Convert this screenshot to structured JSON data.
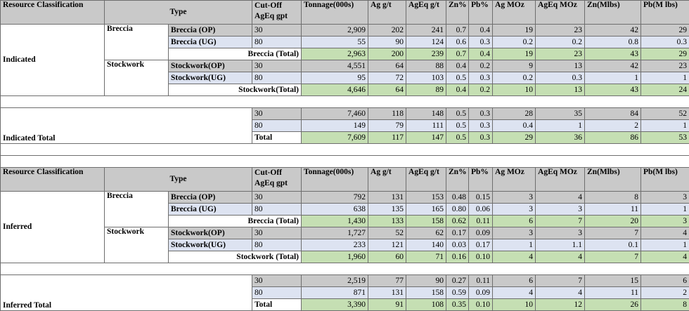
{
  "header": {
    "resource_classification": "Resource Classification",
    "type": "Type",
    "cut_off_line1": "Cut-Off",
    "cut_off_line2": "AgEq gpt",
    "tonnage": "Tonnage(000s)",
    "ag_gt": "Ag  g/t",
    "ageq_gt": "AgEq g/t",
    "zn_pct": "Zn%",
    "pb_pct": "Pb%",
    "ag_moz": "Ag MOz",
    "ageq_moz": "AgEq MOz",
    "zn_mlbs": "Zn(Mlbs)",
    "pb_mlbs": "Pb(M lbs)"
  },
  "indicated": {
    "classification": "Indicated",
    "breccia": {
      "name": "Breccia",
      "rows": [
        {
          "type": "Breccia (OP)",
          "cutoff": "30",
          "tonnage": "2,909",
          "ag": "202",
          "ageq": "241",
          "zn": "0.7",
          "pb": "0.4",
          "ag_moz": "19",
          "ageq_moz": "23",
          "zn_mlbs": "42",
          "pb_mlbs": "29"
        },
        {
          "type": "Breccia (UG)",
          "cutoff": "80",
          "tonnage": "55",
          "ag": "90",
          "ageq": "124",
          "zn": "0.6",
          "pb": "0.3",
          "ag_moz": "0.2",
          "ageq_moz": "0.2",
          "zn_mlbs": "0.8",
          "pb_mlbs": "0.3"
        }
      ],
      "total": {
        "type": "Breccia (Total)",
        "tonnage": "2,963",
        "ag": "200",
        "ageq": "239",
        "zn": "0.7",
        "pb": "0.4",
        "ag_moz": "19",
        "ageq_moz": "23",
        "zn_mlbs": "43",
        "pb_mlbs": "29"
      }
    },
    "stockwork": {
      "name": "Stockwork",
      "rows": [
        {
          "type": "Stockwork(OP)",
          "cutoff": "30",
          "tonnage": "4,551",
          "ag": "64",
          "ageq": "88",
          "zn": "0.4",
          "pb": "0.2",
          "ag_moz": "9",
          "ageq_moz": "13",
          "zn_mlbs": "42",
          "pb_mlbs": "23"
        },
        {
          "type": "Stockwork(UG)",
          "cutoff": "80",
          "tonnage": "95",
          "ag": "72",
          "ageq": "103",
          "zn": "0.5",
          "pb": "0.3",
          "ag_moz": "0.2",
          "ageq_moz": "0.3",
          "zn_mlbs": "1",
          "pb_mlbs": "1"
        }
      ],
      "total": {
        "type": "Stockwork(Total)",
        "tonnage": "4,646",
        "ag": "64",
        "ageq": "89",
        "zn": "0.4",
        "pb": "0.2",
        "ag_moz": "10",
        "ageq_moz": "13",
        "zn_mlbs": "43",
        "pb_mlbs": "24"
      }
    },
    "grand_total": {
      "name": "Indicated Total",
      "rows": [
        {
          "cutoff": "30",
          "tonnage": "7,460",
          "ag": "118",
          "ageq": "148",
          "zn": "0.5",
          "pb": "0.3",
          "ag_moz": "28",
          "ageq_moz": "35",
          "zn_mlbs": "84",
          "pb_mlbs": "52"
        },
        {
          "cutoff": "80",
          "tonnage": "149",
          "ag": "79",
          "ageq": "111",
          "zn": "0.5",
          "pb": "0.3",
          "ag_moz": "0.4",
          "ageq_moz": "1",
          "zn_mlbs": "2",
          "pb_mlbs": "1"
        }
      ],
      "total": {
        "cutoff": "Total",
        "tonnage": "7,609",
        "ag": "117",
        "ageq": "147",
        "zn": "0.5",
        "pb": "0.3",
        "ag_moz": "29",
        "ageq_moz": "36",
        "zn_mlbs": "86",
        "pb_mlbs": "53"
      }
    }
  },
  "inferred": {
    "classification": "Inferred",
    "breccia": {
      "name": "Breccia",
      "rows": [
        {
          "type": "Breccia (OP)",
          "cutoff": "30",
          "tonnage": "792",
          "ag": "131",
          "ageq": "153",
          "zn": "0.48",
          "pb": "0.15",
          "ag_moz": "3",
          "ageq_moz": "4",
          "zn_mlbs": "8",
          "pb_mlbs": "3"
        },
        {
          "type": "Breccia (UG)",
          "cutoff": "80",
          "tonnage": "638",
          "ag": "135",
          "ageq": "165",
          "zn": "0.80",
          "pb": "0.06",
          "ag_moz": "3",
          "ageq_moz": "3",
          "zn_mlbs": "11",
          "pb_mlbs": "1"
        }
      ],
      "total": {
        "type": "Breccia (Total)",
        "tonnage": "1,430",
        "ag": "133",
        "ageq": "158",
        "zn": "0.62",
        "pb": "0.11",
        "ag_moz": "6",
        "ageq_moz": "7",
        "zn_mlbs": "20",
        "pb_mlbs": "3"
      }
    },
    "stockwork": {
      "name": "Stockwork",
      "rows": [
        {
          "type": "Stockwork(OP)",
          "cutoff": "30",
          "tonnage": "1,727",
          "ag": "52",
          "ageq": "62",
          "zn": "0.17",
          "pb": "0.09",
          "ag_moz": "3",
          "ageq_moz": "3",
          "zn_mlbs": "7",
          "pb_mlbs": "4"
        },
        {
          "type": "Stockwork(UG)",
          "cutoff": "80",
          "tonnage": "233",
          "ag": "121",
          "ageq": "140",
          "zn": "0.03",
          "pb": "0.17",
          "ag_moz": "1",
          "ageq_moz": "1.1",
          "zn_mlbs": "0.1",
          "pb_mlbs": "1"
        }
      ],
      "total": {
        "type": "Stockwork (Total)",
        "tonnage": "1,960",
        "ag": "60",
        "ageq": "71",
        "zn": "0.16",
        "pb": "0.10",
        "ag_moz": "4",
        "ageq_moz": "4",
        "zn_mlbs": "7",
        "pb_mlbs": "4"
      }
    },
    "grand_total": {
      "name": "Inferred Total",
      "rows": [
        {
          "cutoff": "30",
          "tonnage": "2,519",
          "ag": "77",
          "ageq": "90",
          "zn": "0.27",
          "pb": "0.11",
          "ag_moz": "6",
          "ageq_moz": "7",
          "zn_mlbs": "15",
          "pb_mlbs": "6"
        },
        {
          "cutoff": "80",
          "tonnage": "871",
          "ag": "131",
          "ageq": "158",
          "zn": "0.59",
          "pb": "0.09",
          "ag_moz": "4",
          "ageq_moz": "4",
          "zn_mlbs": "11",
          "pb_mlbs": "2"
        }
      ],
      "total": {
        "cutoff": "Total",
        "tonnage": "3,390",
        "ag": "91",
        "ageq": "108",
        "zn": "0.35",
        "pb": "0.10",
        "ag_moz": "10",
        "ageq_moz": "12",
        "zn_mlbs": "26",
        "pb_mlbs": "8"
      }
    }
  }
}
